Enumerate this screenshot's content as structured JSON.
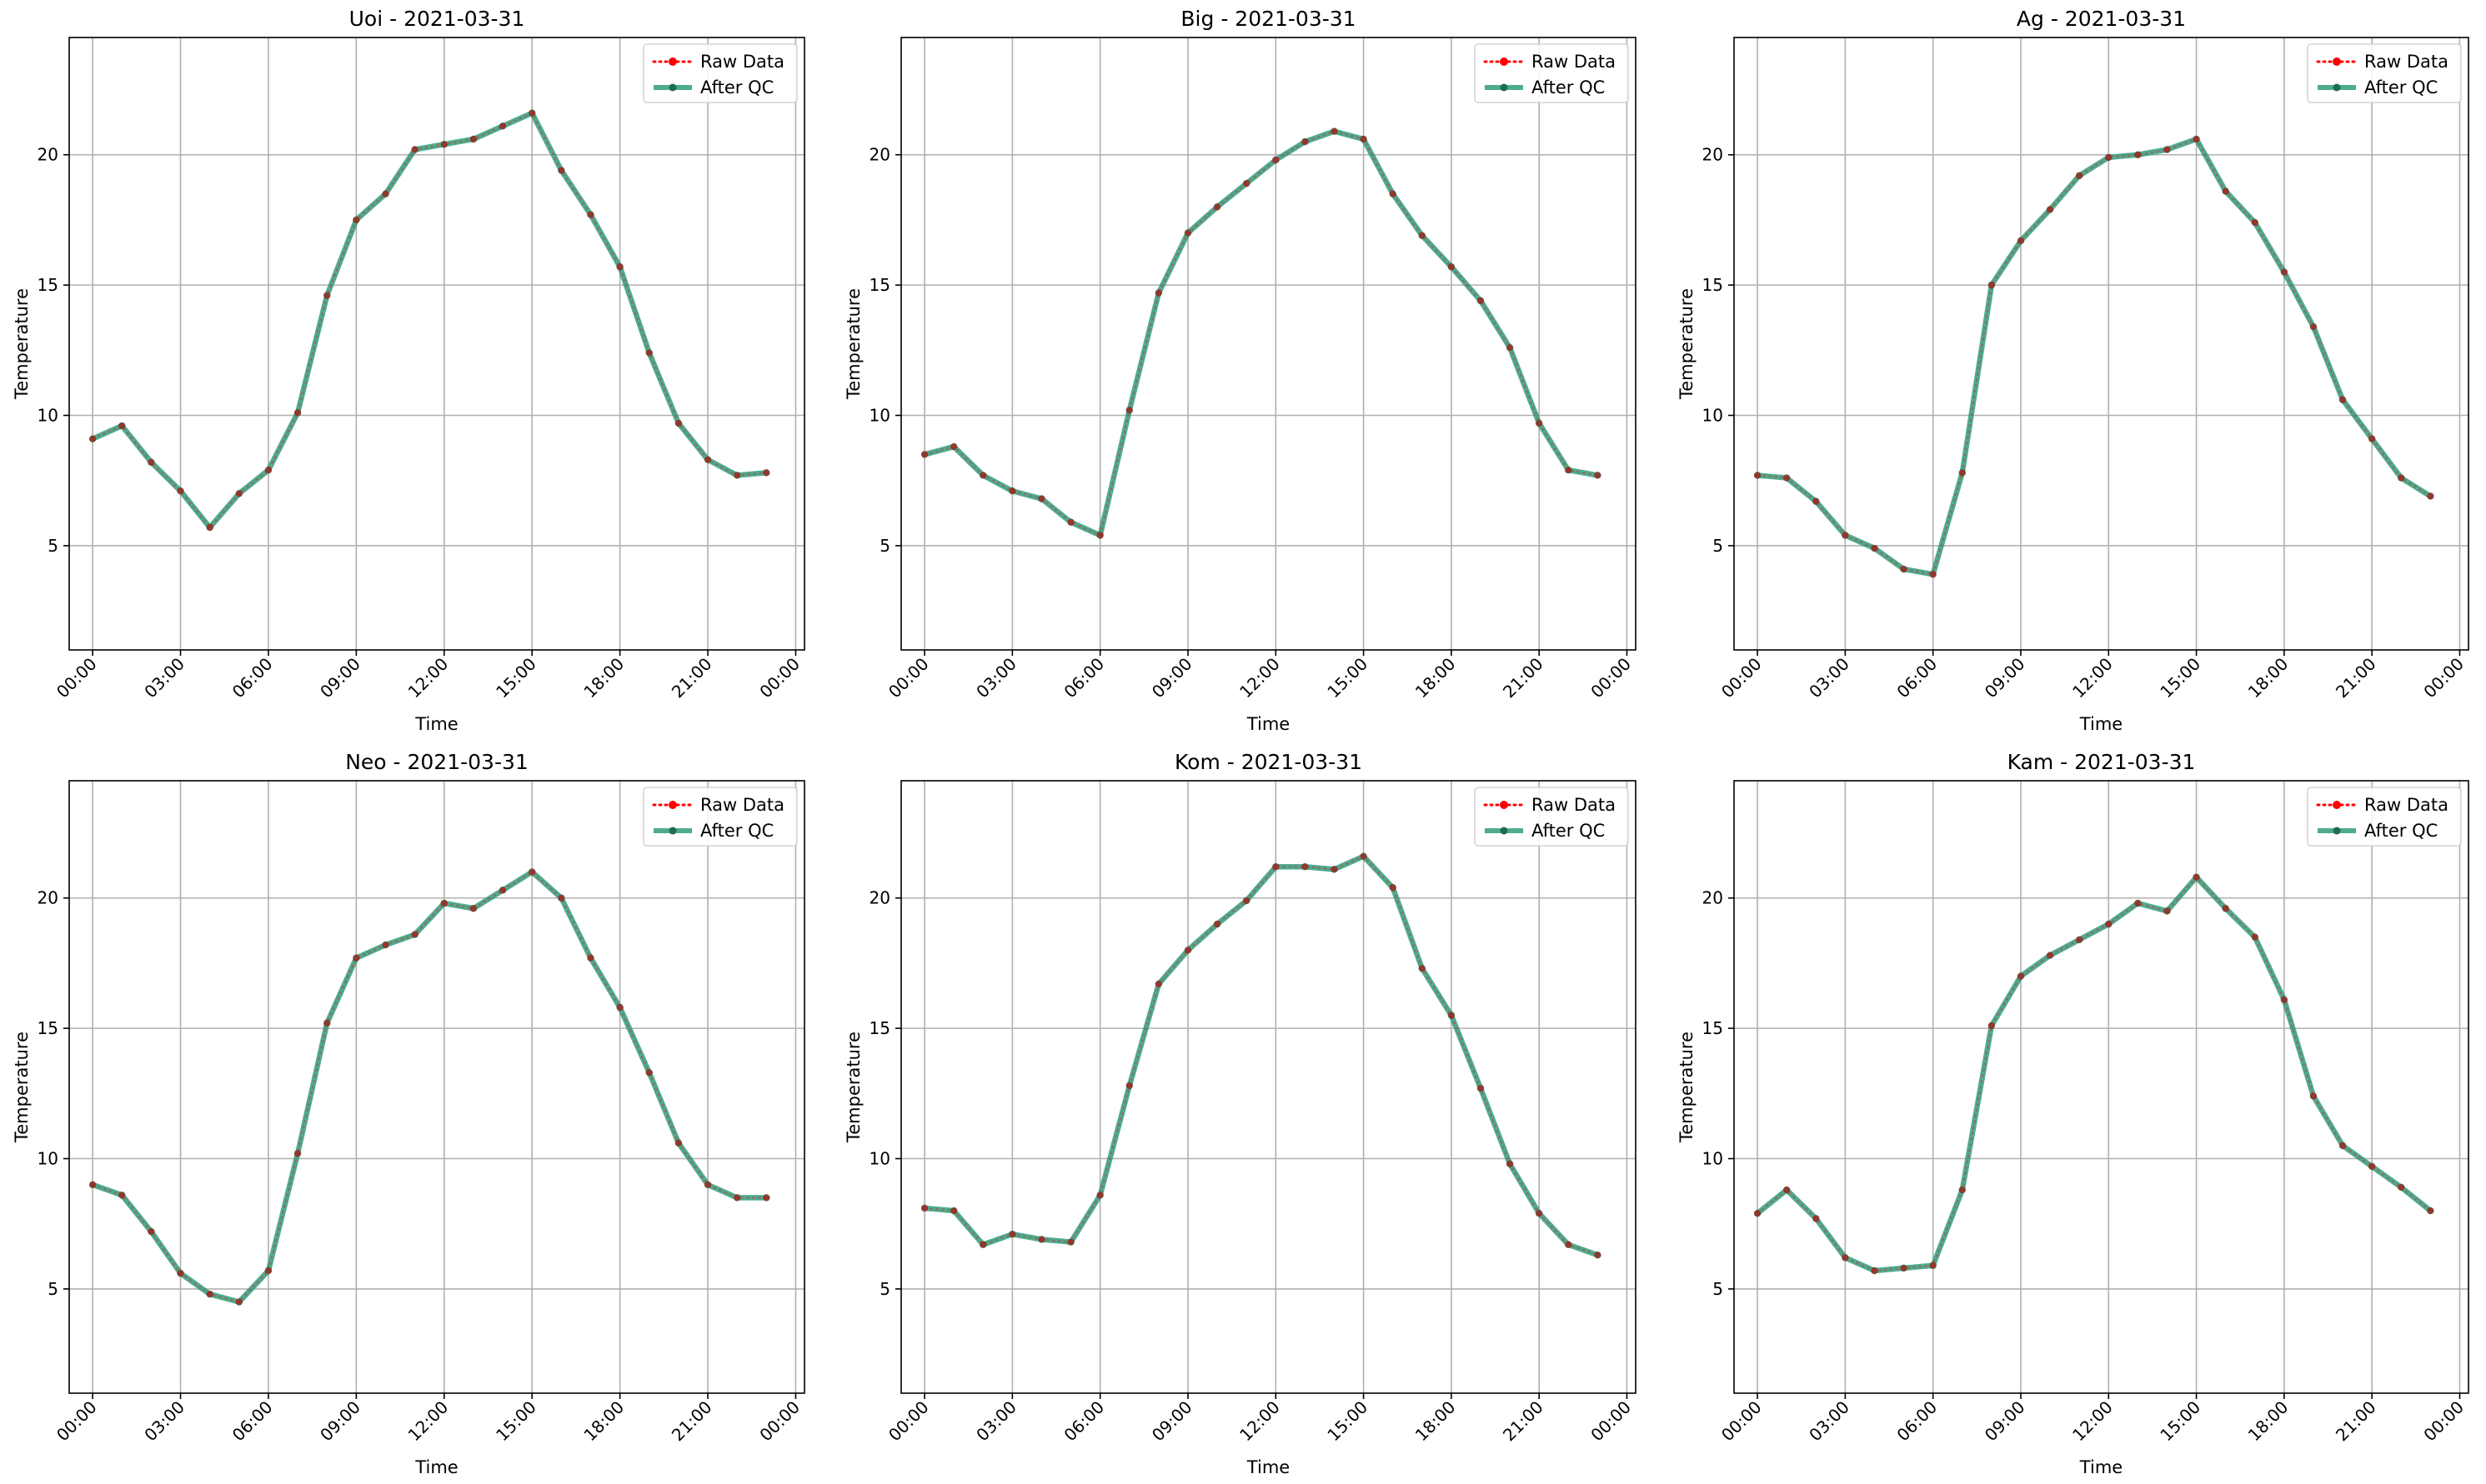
{
  "chart_data": [
    {
      "type": "line",
      "title": "Uoi - 2021-03-31",
      "xlabel": "Time",
      "ylabel": "Temperature",
      "x": [
        "00:00",
        "01:00",
        "02:00",
        "03:00",
        "04:00",
        "05:00",
        "06:00",
        "07:00",
        "08:00",
        "09:00",
        "10:00",
        "11:00",
        "12:00",
        "13:00",
        "14:00",
        "15:00",
        "16:00",
        "17:00",
        "18:00",
        "19:00",
        "20:00",
        "21:00",
        "22:00",
        "23:00"
      ],
      "xticks": [
        "00:00",
        "03:00",
        "06:00",
        "09:00",
        "12:00",
        "15:00",
        "18:00",
        "21:00",
        "00:00"
      ],
      "yticks": [
        5,
        10,
        15,
        20
      ],
      "ylim": [
        1.0,
        24.5
      ],
      "grid": true,
      "legend": "top-right",
      "series": [
        {
          "name": "Raw Data",
          "color": "#ff0000",
          "values": [
            9.1,
            9.6,
            8.2,
            7.1,
            5.7,
            7.0,
            7.9,
            10.1,
            14.6,
            17.5,
            18.5,
            20.2,
            20.4,
            20.6,
            21.1,
            21.6,
            19.4,
            17.7,
            15.7,
            12.4,
            9.7,
            8.3,
            7.7,
            7.8
          ]
        },
        {
          "name": "After QC",
          "color": "#2e9e7b",
          "values": [
            9.1,
            9.6,
            8.2,
            7.1,
            5.7,
            7.0,
            7.9,
            10.1,
            14.6,
            17.5,
            18.5,
            20.2,
            20.4,
            20.6,
            21.1,
            21.6,
            19.4,
            17.7,
            15.7,
            12.4,
            9.7,
            8.3,
            7.7,
            7.8
          ]
        }
      ]
    },
    {
      "type": "line",
      "title": "Big - 2021-03-31",
      "xlabel": "Time",
      "ylabel": "Temperature",
      "x": [
        "00:00",
        "01:00",
        "02:00",
        "03:00",
        "04:00",
        "05:00",
        "06:00",
        "07:00",
        "08:00",
        "09:00",
        "10:00",
        "11:00",
        "12:00",
        "13:00",
        "14:00",
        "15:00",
        "16:00",
        "17:00",
        "18:00",
        "19:00",
        "20:00",
        "21:00",
        "22:00",
        "23:00"
      ],
      "xticks": [
        "00:00",
        "03:00",
        "06:00",
        "09:00",
        "12:00",
        "15:00",
        "18:00",
        "21:00",
        "00:00"
      ],
      "yticks": [
        5,
        10,
        15,
        20
      ],
      "ylim": [
        1.0,
        24.5
      ],
      "grid": true,
      "legend": "top-right",
      "series": [
        {
          "name": "Raw Data",
          "color": "#ff0000",
          "values": [
            8.5,
            8.8,
            7.7,
            7.1,
            6.8,
            5.9,
            5.4,
            10.2,
            14.7,
            17.0,
            18.0,
            18.9,
            19.8,
            20.5,
            20.9,
            20.6,
            18.5,
            16.9,
            15.7,
            14.4,
            12.6,
            9.7,
            7.9,
            7.7
          ]
        },
        {
          "name": "After QC",
          "color": "#2e9e7b",
          "values": [
            8.5,
            8.8,
            7.7,
            7.1,
            6.8,
            5.9,
            5.4,
            10.2,
            14.7,
            17.0,
            18.0,
            18.9,
            19.8,
            20.5,
            20.9,
            20.6,
            18.5,
            16.9,
            15.7,
            14.4,
            12.6,
            9.7,
            7.9,
            7.7
          ]
        }
      ]
    },
    {
      "type": "line",
      "title": "Ag - 2021-03-31",
      "xlabel": "Time",
      "ylabel": "Temperature",
      "x": [
        "00:00",
        "01:00",
        "02:00",
        "03:00",
        "04:00",
        "05:00",
        "06:00",
        "07:00",
        "08:00",
        "09:00",
        "10:00",
        "11:00",
        "12:00",
        "13:00",
        "14:00",
        "15:00",
        "16:00",
        "17:00",
        "18:00",
        "19:00",
        "20:00",
        "21:00",
        "22:00",
        "23:00"
      ],
      "xticks": [
        "00:00",
        "03:00",
        "06:00",
        "09:00",
        "12:00",
        "15:00",
        "18:00",
        "21:00",
        "00:00"
      ],
      "yticks": [
        5,
        10,
        15,
        20
      ],
      "ylim": [
        1.0,
        24.5
      ],
      "grid": true,
      "legend": "top-right",
      "series": [
        {
          "name": "Raw Data",
          "color": "#ff0000",
          "values": [
            7.7,
            7.6,
            6.7,
            5.4,
            4.9,
            4.1,
            3.9,
            7.8,
            15.0,
            16.7,
            17.9,
            19.2,
            19.9,
            20.0,
            20.2,
            20.6,
            18.6,
            17.4,
            15.5,
            13.4,
            10.6,
            9.1,
            7.6,
            6.9
          ]
        },
        {
          "name": "After QC",
          "color": "#2e9e7b",
          "values": [
            7.7,
            7.6,
            6.7,
            5.4,
            4.9,
            4.1,
            3.9,
            7.8,
            15.0,
            16.7,
            17.9,
            19.2,
            19.9,
            20.0,
            20.2,
            20.6,
            18.6,
            17.4,
            15.5,
            13.4,
            10.6,
            9.1,
            7.6,
            6.9
          ]
        }
      ]
    },
    {
      "type": "line",
      "title": "Neo - 2021-03-31",
      "xlabel": "Time",
      "ylabel": "Temperature",
      "x": [
        "00:00",
        "01:00",
        "02:00",
        "03:00",
        "04:00",
        "05:00",
        "06:00",
        "07:00",
        "08:00",
        "09:00",
        "10:00",
        "11:00",
        "12:00",
        "13:00",
        "14:00",
        "15:00",
        "16:00",
        "17:00",
        "18:00",
        "19:00",
        "20:00",
        "21:00",
        "22:00",
        "23:00"
      ],
      "xticks": [
        "00:00",
        "03:00",
        "06:00",
        "09:00",
        "12:00",
        "15:00",
        "18:00",
        "21:00",
        "00:00"
      ],
      "yticks": [
        5,
        10,
        15,
        20
      ],
      "ylim": [
        1.0,
        24.5
      ],
      "grid": true,
      "legend": "top-right",
      "series": [
        {
          "name": "Raw Data",
          "color": "#ff0000",
          "values": [
            9.0,
            8.6,
            7.2,
            5.6,
            4.8,
            4.5,
            5.7,
            10.2,
            15.2,
            17.7,
            18.2,
            18.6,
            19.8,
            19.6,
            20.3,
            21.0,
            20.0,
            17.7,
            15.8,
            13.3,
            10.6,
            9.0,
            8.5,
            8.5
          ]
        },
        {
          "name": "After QC",
          "color": "#2e9e7b",
          "values": [
            9.0,
            8.6,
            7.2,
            5.6,
            4.8,
            4.5,
            5.7,
            10.2,
            15.2,
            17.7,
            18.2,
            18.6,
            19.8,
            19.6,
            20.3,
            21.0,
            20.0,
            17.7,
            15.8,
            13.3,
            10.6,
            9.0,
            8.5,
            8.5
          ]
        }
      ]
    },
    {
      "type": "line",
      "title": "Kom - 2021-03-31",
      "xlabel": "Time",
      "ylabel": "Temperature",
      "x": [
        "00:00",
        "01:00",
        "02:00",
        "03:00",
        "04:00",
        "05:00",
        "06:00",
        "07:00",
        "08:00",
        "09:00",
        "10:00",
        "11:00",
        "12:00",
        "13:00",
        "14:00",
        "15:00",
        "16:00",
        "17:00",
        "18:00",
        "19:00",
        "20:00",
        "21:00",
        "22:00",
        "23:00"
      ],
      "xticks": [
        "00:00",
        "03:00",
        "06:00",
        "09:00",
        "12:00",
        "15:00",
        "18:00",
        "21:00",
        "00:00"
      ],
      "yticks": [
        5,
        10,
        15,
        20
      ],
      "ylim": [
        1.0,
        24.5
      ],
      "grid": true,
      "legend": "top-right",
      "series": [
        {
          "name": "Raw Data",
          "color": "#ff0000",
          "values": [
            8.1,
            8.0,
            6.7,
            7.1,
            6.9,
            6.8,
            8.6,
            12.8,
            16.7,
            18.0,
            19.0,
            19.9,
            21.2,
            21.2,
            21.1,
            21.6,
            20.4,
            17.3,
            15.5,
            12.7,
            9.8,
            7.9,
            6.7,
            6.3
          ]
        },
        {
          "name": "After QC",
          "color": "#2e9e7b",
          "values": [
            8.1,
            8.0,
            6.7,
            7.1,
            6.9,
            6.8,
            8.6,
            12.8,
            16.7,
            18.0,
            19.0,
            19.9,
            21.2,
            21.2,
            21.1,
            21.6,
            20.4,
            17.3,
            15.5,
            12.7,
            9.8,
            7.9,
            6.7,
            6.3
          ]
        }
      ]
    },
    {
      "type": "line",
      "title": "Kam - 2021-03-31",
      "xlabel": "Time",
      "ylabel": "Temperature",
      "x": [
        "00:00",
        "01:00",
        "02:00",
        "03:00",
        "04:00",
        "05:00",
        "06:00",
        "07:00",
        "08:00",
        "09:00",
        "10:00",
        "11:00",
        "12:00",
        "13:00",
        "14:00",
        "15:00",
        "16:00",
        "17:00",
        "18:00",
        "19:00",
        "20:00",
        "21:00",
        "22:00",
        "23:00"
      ],
      "xticks": [
        "00:00",
        "03:00",
        "06:00",
        "09:00",
        "12:00",
        "15:00",
        "18:00",
        "21:00",
        "00:00"
      ],
      "yticks": [
        5,
        10,
        15,
        20
      ],
      "ylim": [
        1.0,
        24.5
      ],
      "grid": true,
      "legend": "top-right",
      "series": [
        {
          "name": "Raw Data",
          "color": "#ff0000",
          "values": [
            7.9,
            8.8,
            7.7,
            6.2,
            5.7,
            5.8,
            5.9,
            8.8,
            15.1,
            17.0,
            17.8,
            18.4,
            19.0,
            19.8,
            19.5,
            20.8,
            19.6,
            18.5,
            16.1,
            12.4,
            10.5,
            9.7,
            8.9,
            8.0
          ]
        },
        {
          "name": "After QC",
          "color": "#2e9e7b",
          "values": [
            7.9,
            8.8,
            7.7,
            6.2,
            5.7,
            5.8,
            5.9,
            8.8,
            15.1,
            17.0,
            17.8,
            18.4,
            19.0,
            19.8,
            19.5,
            20.8,
            19.6,
            18.5,
            16.1,
            12.4,
            10.5,
            9.7,
            8.9,
            8.0
          ]
        }
      ]
    }
  ]
}
